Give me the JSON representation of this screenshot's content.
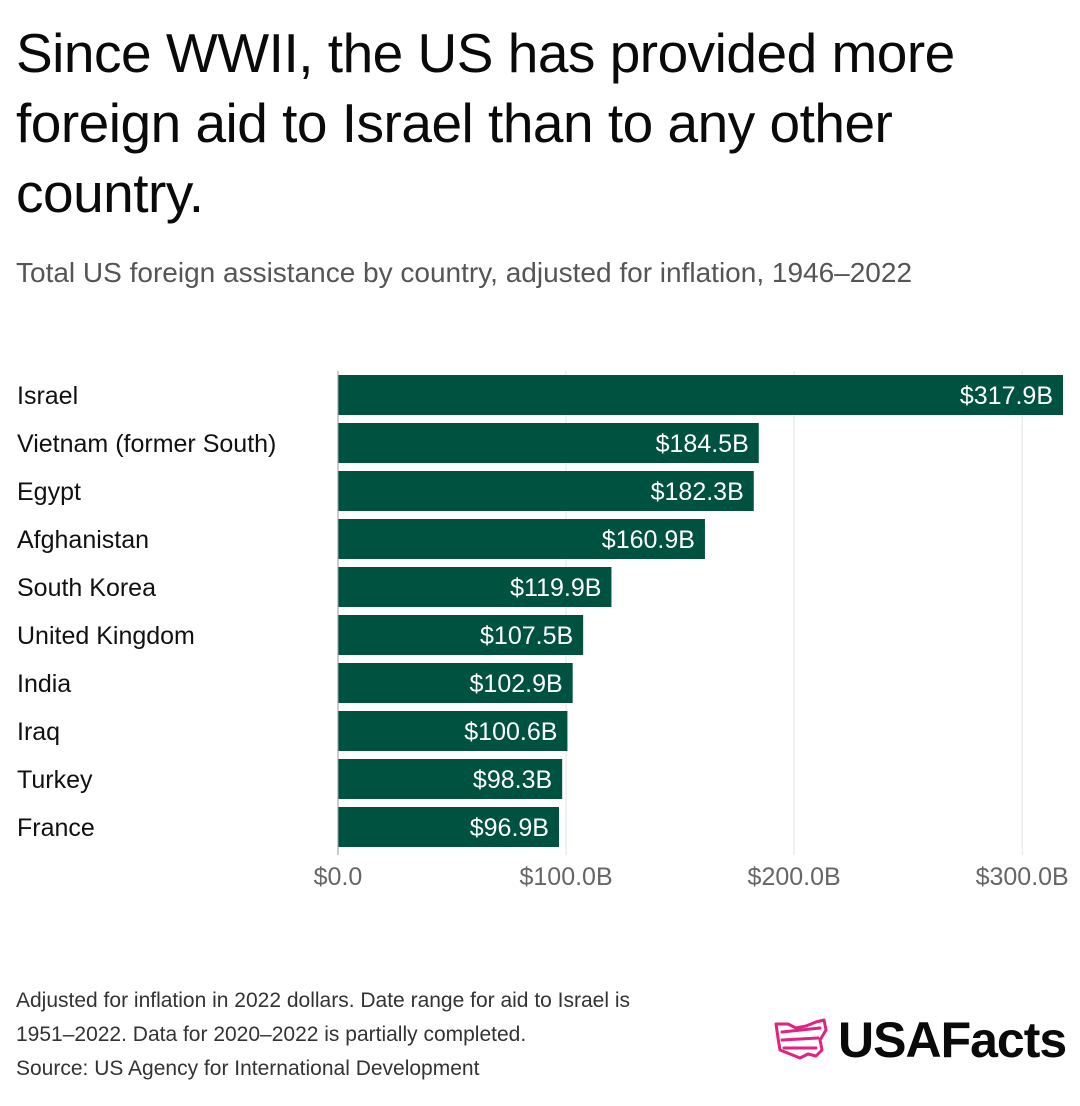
{
  "title": "Since WWII, the US has provided more foreign aid to Israel than to any other country.",
  "subtitle": "Total US foreign assistance by country, adjusted for inflation, 1946–2022",
  "chart_data": {
    "type": "bar",
    "orientation": "horizontal",
    "title": "Since WWII, the US has provided more foreign aid to Israel than to any other country.",
    "subtitle": "Total US foreign assistance by country, adjusted for inflation, 1946–2022",
    "categories": [
      "Israel",
      "Vietnam (former South)",
      "Egypt",
      "Afghanistan",
      "South Korea",
      "United Kingdom",
      "India",
      "Iraq",
      "Turkey",
      "France"
    ],
    "values": [
      317.9,
      184.5,
      182.3,
      160.9,
      119.9,
      107.5,
      102.9,
      100.6,
      98.3,
      96.9
    ],
    "value_labels": [
      "$317.9B",
      "$184.5B",
      "$182.3B",
      "$160.9B",
      "$119.9B",
      "$107.5B",
      "$102.9B",
      "$100.6B",
      "$98.3B",
      "$96.9B"
    ],
    "xlim": [
      0,
      317.9
    ],
    "x_ticks": [
      0,
      100,
      200,
      300
    ],
    "x_tick_labels": [
      "$0.0",
      "$100.0B",
      "$200.0B",
      "$300.0B"
    ],
    "grid": true,
    "bar_color": "#005240"
  },
  "footnotes": [
    "Adjusted for inflation in 2022 dollars. Date range for aid to Israel is",
    "1951–2022. Data for 2020–2022 is partially completed.",
    "Source: US Agency for International Development"
  ],
  "logo": {
    "text": "USAFacts",
    "mark_color": "#e0237e"
  }
}
